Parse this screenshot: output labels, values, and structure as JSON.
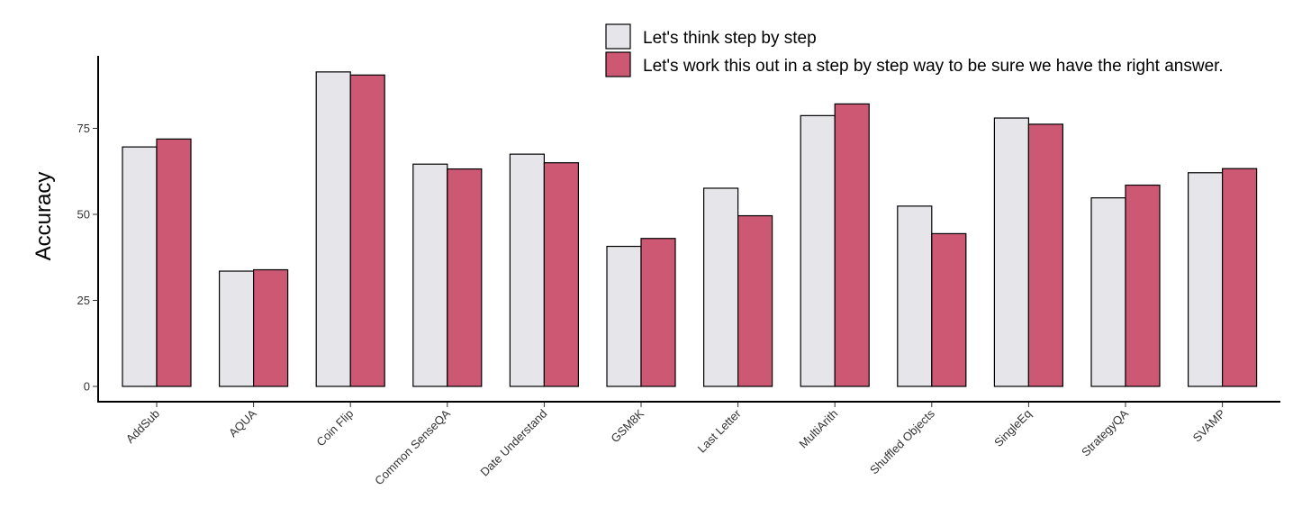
{
  "chart_data": {
    "type": "bar",
    "ylabel": "Accuracy",
    "xlabel": "",
    "ylim": [
      0,
      95
    ],
    "yticks": [
      0,
      25,
      50,
      75
    ],
    "grid": false,
    "legend_position": "top-right",
    "categories": [
      "AddSub",
      "AQUA",
      "Coin Flip",
      "Common SenseQA",
      "Date Understand",
      "GSM8K",
      "Last Letter",
      "MultiArith",
      "Shuffled Objects",
      "SingleEq",
      "StrategyQA",
      "SVAMP"
    ],
    "series": [
      {
        "name": "Let's think step by step",
        "color": "#e6e6ea",
        "values": [
          69.6,
          33.5,
          91.4,
          64.6,
          67.5,
          40.7,
          57.6,
          78.7,
          52.4,
          78.0,
          54.8,
          62.1
        ]
      },
      {
        "name": "Let's work this out in a step by step way to be sure we have the right answer.",
        "color": "#cc5874",
        "values": [
          71.9,
          33.9,
          90.5,
          63.2,
          65.0,
          43.0,
          49.6,
          82.1,
          44.4,
          76.2,
          58.5,
          63.3
        ]
      }
    ]
  }
}
